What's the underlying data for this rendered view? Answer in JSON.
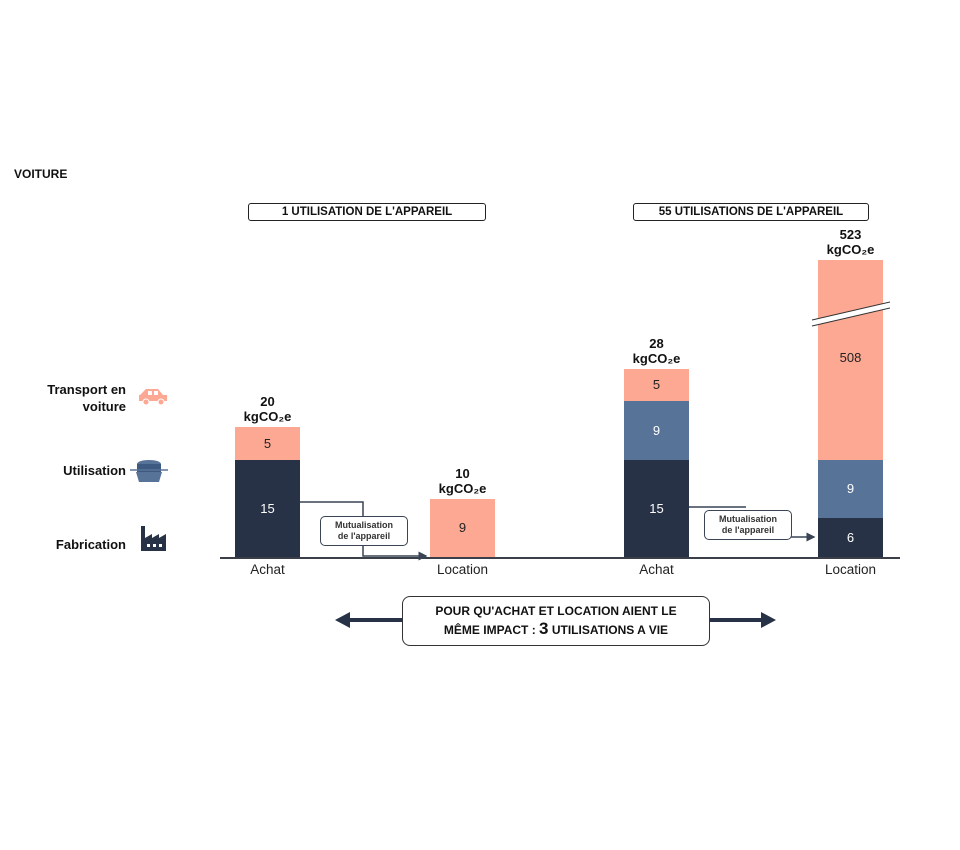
{
  "title": "VOITURE",
  "legend": [
    {
      "label_line1": "Transport en",
      "label_line2": "voiture",
      "icon": "car-icon",
      "color": "#FCA892"
    },
    {
      "label_line1": "Utilisation",
      "label_line2": "",
      "icon": "raclette-appliance-icon",
      "color": "#587398"
    },
    {
      "label_line1": "Fabrication",
      "label_line2": "",
      "icon": "factory-icon",
      "color": "#273246"
    }
  ],
  "colors": {
    "fabrication": "#273246",
    "utilisation": "#587398",
    "transport": "#FCA892",
    "axis": "#3a3f4a"
  },
  "mutualisation_label_1": "Mutualisation",
  "mutualisation_label_2": "de l'appareil",
  "unit_label": "kgCO₂e",
  "banner": {
    "line1": "POUR QU'ACHAT ET LOCATION AIENT LE",
    "line2_pre": "MÊME IMPACT : ",
    "line2_num": "3",
    "line2_post": " UTILISATIONS A VIE"
  },
  "chart_data": {
    "type": "bar",
    "stacked": true,
    "unit": "kgCO₂e",
    "groups": [
      {
        "title": "1 UTILISATION DE L'APPAREIL",
        "categories": [
          "Achat",
          "Location"
        ],
        "totals": [
          "20",
          "10"
        ],
        "series": [
          {
            "name": "Fabrication",
            "values": [
              15,
              null
            ]
          },
          {
            "name": "Utilisation",
            "values": [
              null,
              null
            ]
          },
          {
            "name": "Transport en voiture",
            "values": [
              5,
              9
            ]
          }
        ]
      },
      {
        "title": "55 UTILISATIONS DE L'APPAREIL",
        "categories": [
          "Achat",
          "Location"
        ],
        "totals": [
          "28",
          "523"
        ],
        "series": [
          {
            "name": "Fabrication",
            "values": [
              15,
              6
            ]
          },
          {
            "name": "Utilisation",
            "values": [
              9,
              9
            ]
          },
          {
            "name": "Transport en voiture",
            "values": [
              5,
              508
            ]
          }
        ],
        "axis_break": "Location transport segment"
      }
    ]
  }
}
